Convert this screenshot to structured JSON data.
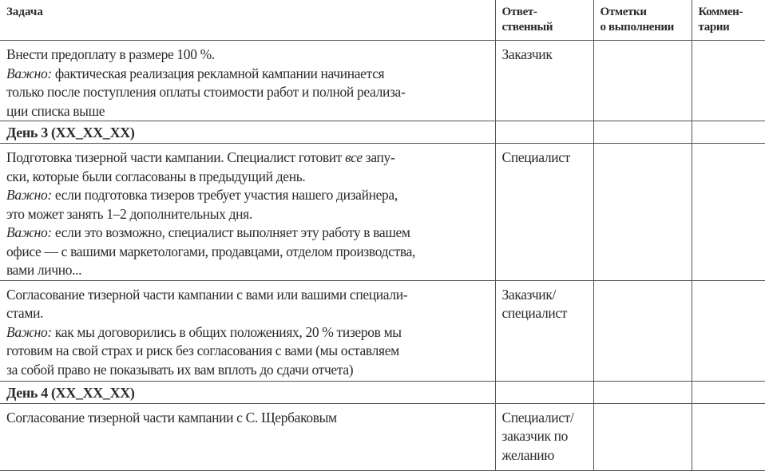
{
  "header": {
    "task": "Задача",
    "responsible": [
      "Ответ-",
      "ственный"
    ],
    "marks": [
      "Отметки",
      "о выполнении"
    ],
    "comments": [
      "Коммен-",
      "тарии"
    ]
  },
  "rows": [
    {
      "type": "task",
      "task": [
        [
          {
            "t": "Внести предоплату в размере 100 %."
          }
        ],
        [
          {
            "t": "Важно:",
            "i": true
          },
          {
            "t": " фактическая реализация рекламной кампании начинается"
          }
        ],
        [
          {
            "t": "только после поступления оплаты стоимости работ и полной реализа-"
          }
        ],
        [
          {
            "t": "ции списка выше"
          }
        ]
      ],
      "responsible": [
        "Заказчик"
      ],
      "minh": 94
    },
    {
      "type": "day",
      "task": [
        [
          {
            "t": "День 3 (XX_XX_XX)"
          }
        ]
      ]
    },
    {
      "type": "task",
      "task": [
        [
          {
            "t": "Подготовка тизерной части кампании. Специалист готовит "
          },
          {
            "t": "все",
            "i": true
          },
          {
            "t": " запу-"
          }
        ],
        [
          {
            "t": "ски, которые были согласованы в предыдущий день."
          }
        ],
        [
          {
            "t": "Важно:",
            "i": true
          },
          {
            "t": " если подготовка тизеров требует участия нашего дизайнера,"
          }
        ],
        [
          {
            "t": "это может занять 1–2 дополнительных дня."
          }
        ],
        [
          {
            "t": "Важно:",
            "i": true
          },
          {
            "t": " если это возможно, специалист выполняет эту работу в вашем"
          }
        ],
        [
          {
            "t": "офисе — с вашими маркетологами, продавцами, отделом производства,"
          }
        ],
        [
          {
            "t": "вами лично..."
          }
        ]
      ],
      "responsible": [
        "Специалист"
      ],
      "minh": 162
    },
    {
      "type": "task",
      "task": [
        [
          {
            "t": "Согласование тизерной части кампании с вами или вашими специали-"
          }
        ],
        [
          {
            "t": "стами."
          }
        ],
        [
          {
            "t": "Важно:",
            "i": true
          },
          {
            "t": " как мы договорились в общих положениях, 20 % тизеров мы"
          }
        ],
        [
          {
            "t": "готовим на свой страх и риск без согласования с вами (мы оставляем"
          }
        ],
        [
          {
            "t": "за собой право не показывать их вам вплоть до сдачи отчета)"
          }
        ]
      ],
      "responsible": [
        "Заказчик/",
        "специалист"
      ],
      "minh": 119
    },
    {
      "type": "day",
      "task": [
        [
          {
            "t": "День 4 (XX_XX_XX)"
          }
        ]
      ]
    },
    {
      "type": "task",
      "task": [
        [
          {
            "t": "Согласование тизерной части кампании с С. Щербаковым"
          }
        ]
      ],
      "responsible": [
        "Специалист/",
        "заказчик по",
        "желанию"
      ],
      "minh": 77
    }
  ]
}
